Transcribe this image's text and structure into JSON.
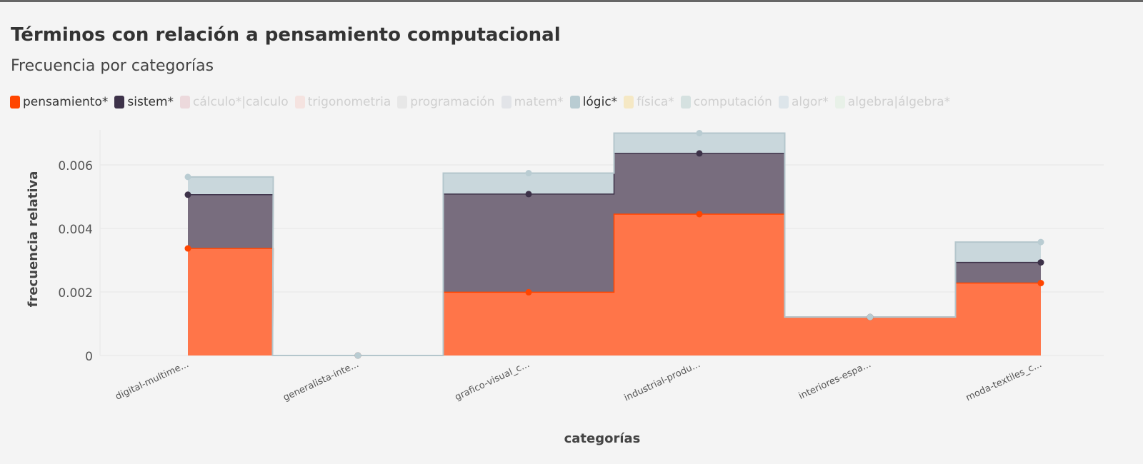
{
  "title": "Términos con relación a pensamiento computacional",
  "subtitle": "Frecuencia por categorías",
  "legend": [
    {
      "label": "pensamiento*",
      "color": "#ff4500",
      "active": true
    },
    {
      "label": "sistem*",
      "color": "#3d3249",
      "active": true
    },
    {
      "label": "cálculo*|calculo",
      "color": "#ecd9dc",
      "active": false
    },
    {
      "label": "trigonometria",
      "color": "#f5e3e0",
      "active": false
    },
    {
      "label": "programación",
      "color": "#e7e7e7",
      "active": false
    },
    {
      "label": "matem*",
      "color": "#e2e4e8",
      "active": false
    },
    {
      "label": "lógic*",
      "color": "#b9ccd2",
      "active": true
    },
    {
      "label": "física*",
      "color": "#f5e8c4",
      "active": false
    },
    {
      "label": "computación",
      "color": "#d5e1e0",
      "active": false
    },
    {
      "label": "algor*",
      "color": "#dde5ea",
      "active": false
    },
    {
      "label": "algebra|álgebra*",
      "color": "#e8f1e8",
      "active": false
    }
  ],
  "chart_data": {
    "type": "area",
    "step": true,
    "stacked": true,
    "xlabel": "categorías",
    "ylabel": "frecuencia relativa",
    "ylim": [
      0,
      0.0071
    ],
    "yticks": [
      0,
      0.002,
      0.004,
      0.006
    ],
    "ytick_labels": [
      "0",
      "0.002",
      "0.004",
      "0.006"
    ],
    "grid": true,
    "legend_position": "top-left",
    "categories": [
      "digital-multime...",
      "generalista-inte...",
      "grafico-visual_c...",
      "industrial-produ...",
      "interiores-espa...",
      "moda-textiles_c..."
    ],
    "series": [
      {
        "name": "pensamiento*",
        "color": "#ff4500",
        "fill": "#ff7549",
        "values": [
          0.00337,
          0,
          0.00199,
          0.00445,
          0.00121,
          0.00228
        ]
      },
      {
        "name": "sistem*",
        "color": "#3d3249",
        "fill": "#786d7e",
        "values": [
          0.00169,
          0,
          0.00309,
          0.00191,
          0,
          0.00065
        ]
      },
      {
        "name": "lógic*",
        "color": "#b9ccd2",
        "fill": "#c9d7dc",
        "values": [
          0.00056,
          0,
          0.00066,
          0.00064,
          0,
          0.00064
        ]
      }
    ]
  }
}
